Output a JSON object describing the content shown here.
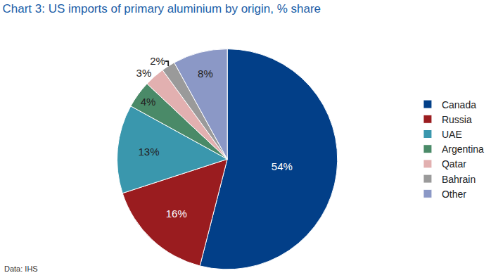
{
  "chart_data": {
    "type": "pie",
    "title": "Chart 3: US imports of primary aluminium by origin, % share",
    "categories": [
      "Canada",
      "Russia",
      "UAE",
      "Argentina",
      "Qatar",
      "Bahrain",
      "Other"
    ],
    "values": [
      54,
      16,
      13,
      4,
      3,
      2,
      8
    ],
    "value_labels": [
      "54%",
      "16%",
      "13%",
      "4%",
      "3%",
      "2%",
      "8%"
    ],
    "colors": [
      "#023f88",
      "#9a1c1f",
      "#3a97ad",
      "#4a8a68",
      "#e2b0b0",
      "#9a9a9a",
      "#8b98c6"
    ],
    "data_labels": true,
    "legend": "right",
    "annotations": [
      "Data: IHS"
    ]
  }
}
